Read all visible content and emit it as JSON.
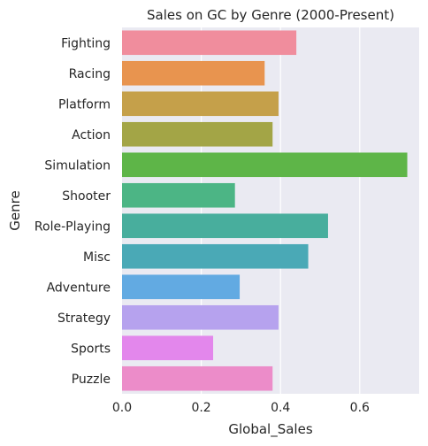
{
  "chart_data": {
    "type": "bar",
    "orientation": "horizontal",
    "title": "Sales on GC by Genre (2000-Present)",
    "xlabel": "Global_Sales",
    "ylabel": "Genre",
    "xlim": [
      0,
      0.75
    ],
    "xticks": [
      0.0,
      0.2,
      0.4,
      0.6
    ],
    "xtick_labels": [
      "0.0",
      "0.2",
      "0.4",
      "0.6"
    ],
    "grid": true,
    "background": "#eaeaf2",
    "categories": [
      "Fighting",
      "Racing",
      "Platform",
      "Action",
      "Simulation",
      "Shooter",
      "Role-Playing",
      "Misc",
      "Adventure",
      "Strategy",
      "Sports",
      "Puzzle"
    ],
    "values": [
      0.44,
      0.36,
      0.395,
      0.38,
      0.72,
      0.285,
      0.52,
      0.47,
      0.297,
      0.395,
      0.23,
      0.38
    ],
    "colors": [
      "#f08d9d",
      "#e8944f",
      "#c5a04a",
      "#a3a546",
      "#5eb548",
      "#4cb585",
      "#48ae9d",
      "#4aa9b6",
      "#62aae2",
      "#b6a2ee",
      "#e387ec",
      "#ec8cc9"
    ]
  }
}
